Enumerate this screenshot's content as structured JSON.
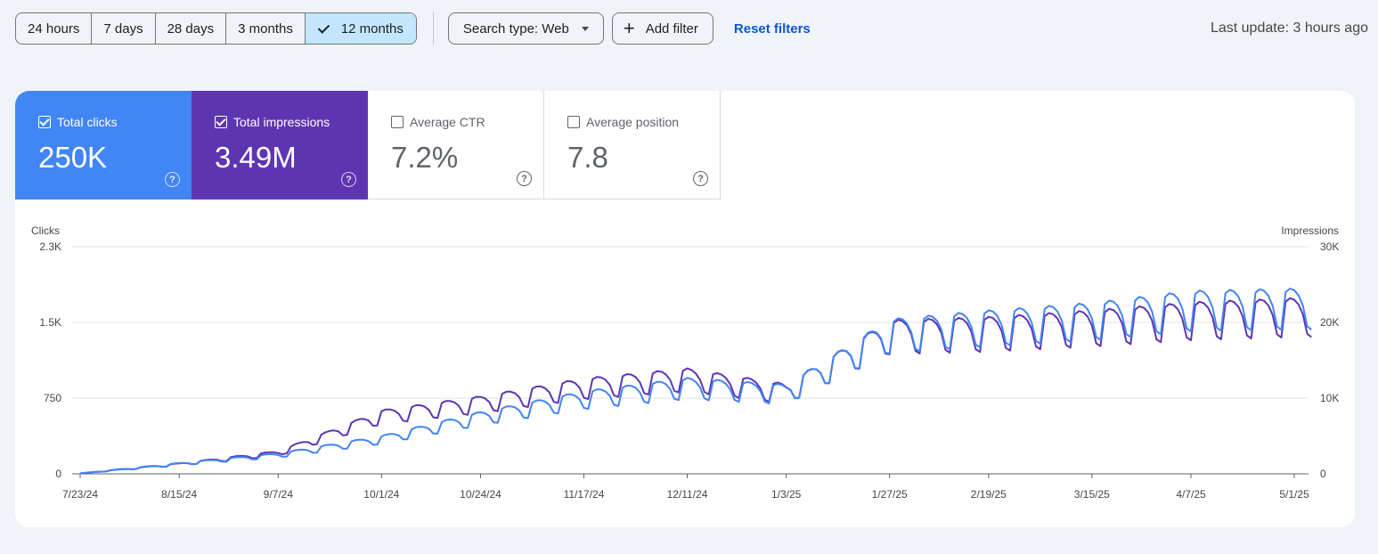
{
  "toolbar": {
    "date_ranges": [
      {
        "label": "24 hours",
        "active": false
      },
      {
        "label": "7 days",
        "active": false
      },
      {
        "label": "28 days",
        "active": false
      },
      {
        "label": "3 months",
        "active": false
      },
      {
        "label": "12 months",
        "active": true
      }
    ],
    "search_type_label": "Search type: Web",
    "add_filter_label": "Add filter",
    "reset_filters_label": "Reset filters",
    "last_update": "Last update: 3 hours ago"
  },
  "metrics": [
    {
      "label": "Total clicks",
      "value": "250K",
      "checked": true,
      "color": "#4285f4"
    },
    {
      "label": "Total impressions",
      "value": "3.49M",
      "checked": true,
      "color": "#5e35b1"
    },
    {
      "label": "Average CTR",
      "value": "7.2%",
      "checked": false,
      "color": "#ffffff"
    },
    {
      "label": "Average position",
      "value": "7.8",
      "checked": false,
      "color": "#ffffff"
    }
  ],
  "help_glyph": "?",
  "chart_data": {
    "type": "line",
    "left_axis_label": "Clicks",
    "right_axis_label": "Impressions",
    "left_ticks": [
      "0",
      "750",
      "1.5K",
      "2.3K"
    ],
    "right_ticks": [
      "0",
      "10K",
      "20K",
      "30K"
    ],
    "left_range": [
      0,
      2250
    ],
    "right_range": [
      0,
      30000
    ],
    "x_ticks": [
      "7/23/24",
      "8/15/24",
      "9/7/24",
      "10/1/24",
      "10/24/24",
      "11/17/24",
      "12/11/24",
      "1/3/25",
      "1/27/25",
      "2/19/25",
      "3/15/25",
      "4/7/25",
      "5/1/25"
    ],
    "grid": true,
    "series": [
      {
        "name": "Clicks",
        "axis": "left",
        "color": "#4285f4",
        "anchors": [
          [
            "7/23/24",
            5
          ],
          [
            "8/15/24",
            100
          ],
          [
            "9/7/24",
            190
          ],
          [
            "10/1/24",
            350
          ],
          [
            "10/24/24",
            570
          ],
          [
            "11/17/24",
            760
          ],
          [
            "12/11/24",
            880
          ],
          [
            "1/3/25",
            820
          ],
          [
            "1/27/25",
            1420
          ],
          [
            "2/19/25",
            1500
          ],
          [
            "3/15/25",
            1570
          ],
          [
            "4/7/25",
            1680
          ],
          [
            "5/1/25",
            1700
          ]
        ]
      },
      {
        "name": "Impressions",
        "axis": "right",
        "color": "#5e35b1",
        "anchors": [
          [
            "7/23/24",
            50
          ],
          [
            "8/15/24",
            1300
          ],
          [
            "9/7/24",
            2800
          ],
          [
            "10/1/24",
            7800
          ],
          [
            "10/24/24",
            9500
          ],
          [
            "11/17/24",
            11700
          ],
          [
            "12/11/24",
            12900
          ],
          [
            "1/3/25",
            11000
          ],
          [
            "1/27/25",
            18800
          ],
          [
            "2/19/25",
            19200
          ],
          [
            "3/15/25",
            20000
          ],
          [
            "4/7/25",
            21000
          ],
          [
            "5/1/25",
            21500
          ]
        ]
      }
    ]
  }
}
